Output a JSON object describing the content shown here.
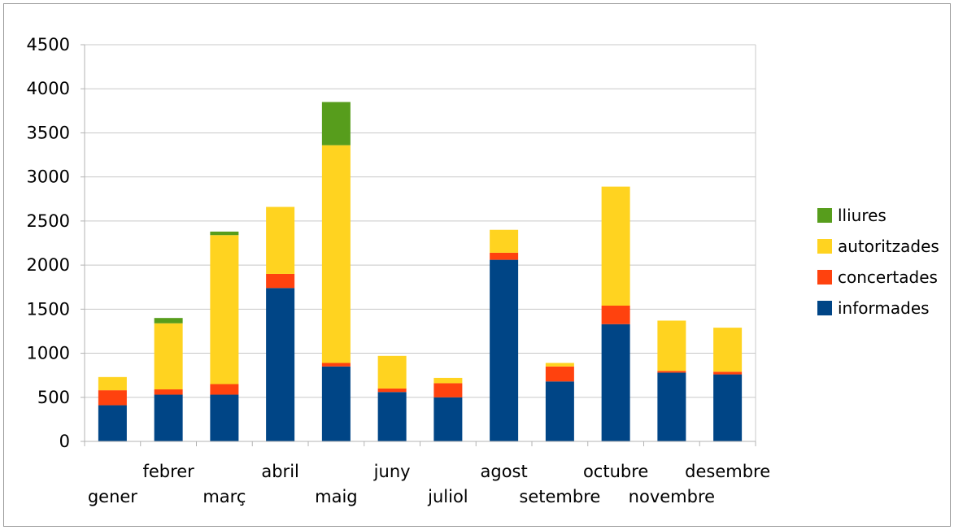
{
  "chart_data": {
    "type": "bar",
    "stacked": true,
    "title": "",
    "xlabel": "",
    "ylabel": "",
    "ylim": [
      0,
      4500
    ],
    "yticks": [
      0,
      500,
      1000,
      1500,
      2000,
      2500,
      3000,
      3500,
      4000,
      4500
    ],
    "grid": true,
    "legend_position": "right",
    "categories": [
      "gener",
      "febrer",
      "març",
      "abril",
      "maig",
      "juny",
      "juliol",
      "agost",
      "setembre",
      "octubre",
      "novembre",
      "desembre"
    ],
    "series": [
      {
        "name": "informades",
        "color": "#004586",
        "values": [
          410,
          530,
          530,
          1740,
          850,
          560,
          500,
          2060,
          680,
          1330,
          780,
          760
        ]
      },
      {
        "name": "concertades",
        "color": "#ff420e",
        "values": [
          170,
          60,
          120,
          160,
          40,
          40,
          160,
          80,
          170,
          210,
          20,
          30
        ]
      },
      {
        "name": "autoritzades",
        "color": "#ffd320",
        "values": [
          150,
          750,
          1690,
          760,
          2470,
          370,
          60,
          260,
          40,
          1350,
          570,
          500
        ]
      },
      {
        "name": "lliures",
        "color": "#579d1c",
        "values": [
          0,
          60,
          40,
          0,
          490,
          0,
          0,
          0,
          0,
          0,
          0,
          0
        ]
      }
    ]
  }
}
